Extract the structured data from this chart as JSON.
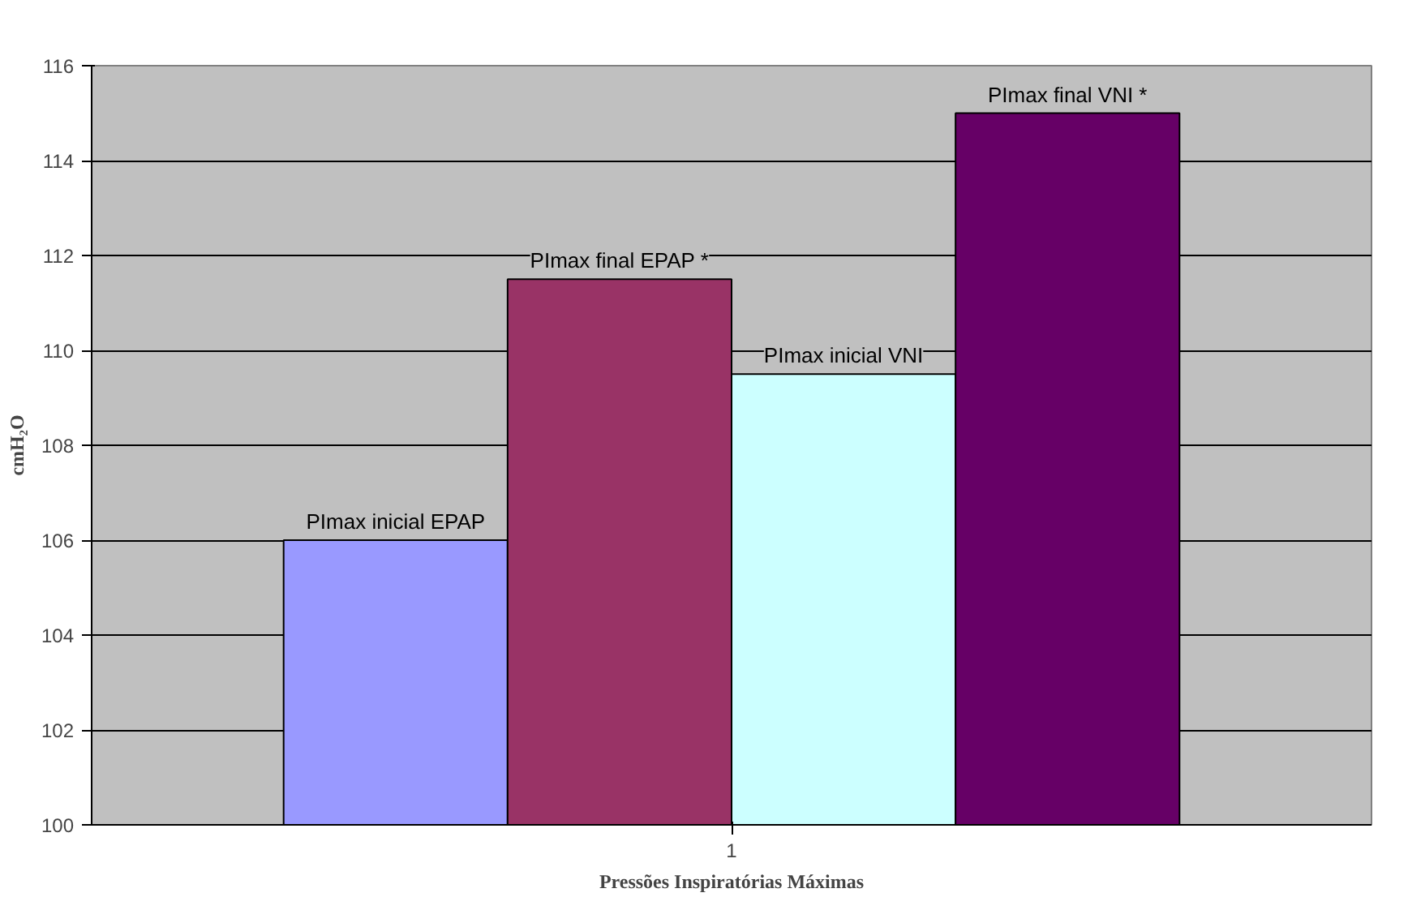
{
  "chart_data": {
    "type": "bar",
    "xlabel": "Pressões Inspiratórias Máximas",
    "ylabel": "cmH₂O",
    "categories": [
      "1"
    ],
    "series": [
      {
        "name": "PImax inicial EPAP",
        "color": "#9999ff",
        "values": [
          106
        ]
      },
      {
        "name": "PImax final EPAP *",
        "color": "#993366",
        "values": [
          111.5
        ]
      },
      {
        "name": "PImax inicial VNI",
        "color": "#ccffff",
        "values": [
          109.5
        ]
      },
      {
        "name": "PImax final VNI *",
        "color": "#660066",
        "values": [
          115
        ]
      }
    ],
    "ylim": [
      100,
      116
    ],
    "yticks": [
      100,
      102,
      104,
      106,
      108,
      110,
      112,
      114,
      116
    ],
    "grid": "y"
  }
}
